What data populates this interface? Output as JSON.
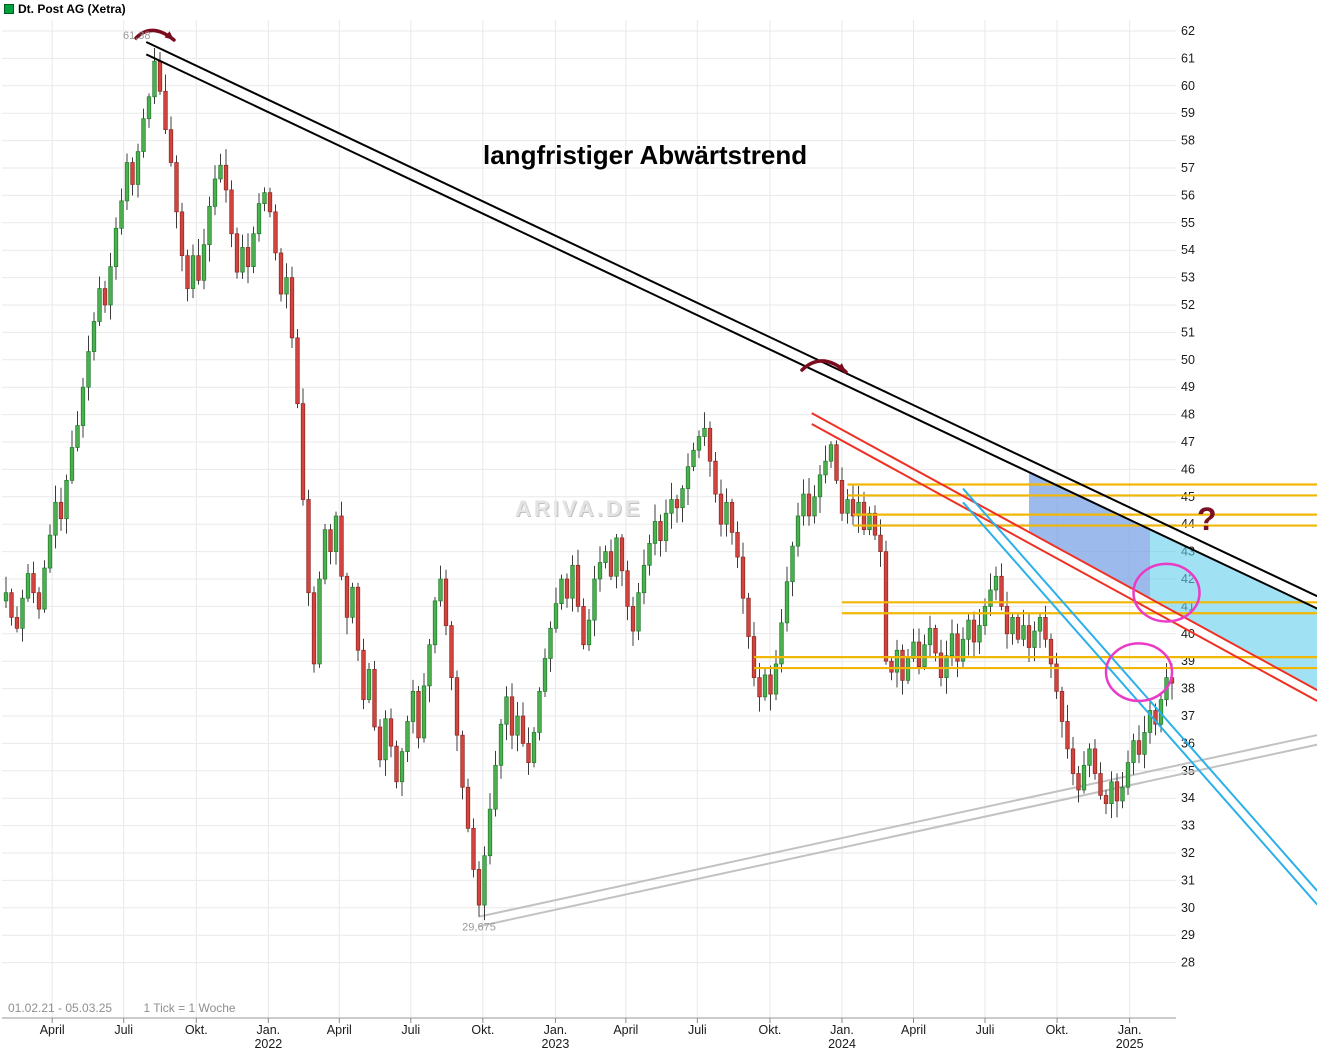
{
  "legend": {
    "title": "Dt. Post AG (Xetra)",
    "marker_color": "#00a33e"
  },
  "footer": {
    "range": "01.02.21 - 05.03.25",
    "tick": "1 Tick = 1 Woche"
  },
  "watermark": "ARIVA.DE",
  "colors": {
    "up": "#4caf50",
    "up_border": "#1e7a28",
    "down": "#d2453f",
    "down_border": "#8e241f",
    "wick": "#3c3c3c",
    "grid": "#e9e9e9",
    "axis_text": "#1a1a1a",
    "axis_line": "#999999",
    "trend_black": "#000000",
    "trend_red": "#ee3124",
    "trend_blue": "#2bb0e8",
    "trend_gray": "#c2c2c2",
    "band_yellow": "#f2b705",
    "ellipse_magenta": "#ea3bc7",
    "arrow_dark_red": "#7a0c1e",
    "label_gray": "#9a9a9a"
  },
  "chart_data": {
    "type": "candlestick",
    "title": "Dt. Post AG (Xetra)",
    "period": "01.02.21 - 05.03.25",
    "interval": "1 Tick = 1 Woche",
    "ylim": [
      27.0,
      62.4
    ],
    "grid": true,
    "y_axis": {
      "ticks": [
        62,
        61,
        60,
        59,
        58,
        57,
        56,
        55,
        54,
        53,
        52,
        51,
        50,
        49,
        48,
        47,
        46,
        45,
        44,
        43,
        42,
        41,
        40,
        39,
        38,
        37,
        36,
        35,
        34,
        33,
        32,
        31,
        30,
        29,
        28
      ]
    },
    "x_axis": {
      "labels": [
        {
          "text": "April",
          "week": 8.4
        },
        {
          "text": "Juli",
          "week": 21.4
        },
        {
          "text": "Okt.",
          "week": 34.6
        },
        {
          "text": "Jan.",
          "week": 47.7,
          "year": "2022"
        },
        {
          "text": "April",
          "week": 60.6
        },
        {
          "text": "Juli",
          "week": 73.6
        },
        {
          "text": "Okt.",
          "week": 86.7
        },
        {
          "text": "Jan.",
          "week": 99.9,
          "year": "2023"
        },
        {
          "text": "April",
          "week": 112.7
        },
        {
          "text": "Juli",
          "week": 125.7
        },
        {
          "text": "Okt.",
          "week": 138.9
        },
        {
          "text": "Jan.",
          "week": 152.0,
          "year": "2024"
        },
        {
          "text": "April",
          "week": 165.0
        },
        {
          "text": "Juli",
          "week": 178.0
        },
        {
          "text": "Okt.",
          "week": 191.1
        },
        {
          "text": "Jan.",
          "week": 204.3,
          "year": "2025"
        }
      ]
    },
    "open_first": 41.2,
    "closes": [
      41.5,
      40.6,
      40.2,
      41.3,
      42.2,
      41.5,
      40.9,
      42.4,
      43.6,
      44.8,
      44.2,
      45.6,
      46.8,
      47.6,
      49.0,
      50.3,
      51.4,
      52.6,
      52.0,
      53.4,
      54.8,
      55.8,
      57.2,
      56.4,
      57.6,
      58.8,
      59.6,
      60.9,
      59.8,
      58.4,
      57.2,
      55.4,
      53.8,
      52.6,
      53.8,
      52.9,
      54.2,
      55.6,
      56.6,
      57.1,
      56.2,
      54.6,
      53.2,
      54.1,
      53.4,
      54.6,
      55.7,
      56.1,
      55.4,
      53.9,
      52.4,
      53.0,
      50.8,
      48.4,
      44.9,
      41.5,
      38.9,
      42.0,
      43.8,
      43.0,
      44.3,
      42.1,
      40.6,
      41.7,
      39.4,
      37.6,
      38.7,
      36.6,
      35.4,
      36.9,
      35.9,
      34.6,
      35.7,
      36.8,
      37.9,
      36.2,
      38.1,
      39.6,
      41.2,
      42.0,
      40.3,
      38.4,
      36.3,
      34.4,
      32.9,
      31.4,
      30.1,
      31.9,
      33.6,
      35.2,
      36.7,
      37.7,
      36.3,
      37.0,
      36.0,
      35.3,
      36.4,
      37.9,
      39.1,
      40.2,
      41.1,
      42.0,
      41.3,
      42.5,
      41.0,
      39.6,
      40.5,
      42.0,
      42.6,
      43.0,
      42.1,
      43.5,
      42.3,
      41.0,
      40.1,
      41.5,
      42.5,
      43.3,
      44.1,
      43.4,
      44.4,
      44.9,
      44.6,
      45.3,
      46.1,
      46.7,
      47.2,
      47.5,
      46.3,
      45.1,
      44.0,
      44.8,
      43.7,
      42.8,
      41.3,
      39.9,
      38.4,
      37.7,
      38.5,
      37.8,
      38.9,
      40.4,
      41.9,
      43.2,
      44.3,
      45.1,
      44.3,
      45.0,
      45.8,
      46.3,
      46.9,
      45.6,
      44.4,
      44.9,
      44.3,
      44.8,
      43.8,
      44.4,
      43.6,
      43.0,
      39.0,
      38.6,
      39.4,
      38.3,
      39.1,
      39.7,
      38.8,
      39.6,
      40.2,
      39.3,
      38.4,
      39.2,
      40.0,
      39.0,
      39.8,
      40.5,
      39.7,
      40.3,
      41.0,
      41.6,
      42.1,
      41.0,
      40.0,
      40.6,
      39.8,
      40.3,
      39.5,
      40.1,
      40.6,
      39.8,
      38.9,
      37.9,
      36.8,
      35.8,
      34.9,
      34.3,
      35.2,
      35.8,
      34.9,
      34.1,
      33.8,
      34.6,
      33.9,
      34.4,
      35.3,
      36.1,
      35.6,
      36.4,
      37.2,
      36.7,
      37.6,
      38.4,
      38.2
    ],
    "annotations": {
      "trend_text": "langfristiger Abwärtstrend",
      "question_mark": "?",
      "high_label": {
        "week": 27,
        "price": 61.38,
        "text": "61,38"
      },
      "low_label": {
        "week": 86,
        "price": 29.675,
        "text": "29,675"
      }
    },
    "overlays": {
      "trendlines": [
        {
          "name": "trendline-black-longterm",
          "color_key": "trend_black",
          "anchor_week": 26,
          "anchor_price": 61.55,
          "slope_per_week": -0.095,
          "from_week": 25.5,
          "to_week": 238.4,
          "gap": 0.45,
          "width": 2
        },
        {
          "name": "trendline-red-medium",
          "color_key": "trend_red",
          "anchor_week": 147,
          "anchor_price": 48.0,
          "slope_per_week": -0.11,
          "from_week": 146.5,
          "to_week": 238.4,
          "gap": 0.4,
          "width": 2
        },
        {
          "name": "trendline-blue-steep",
          "color_key": "trend_blue",
          "anchor_week": 174,
          "anchor_price": 45.3,
          "slope_per_week": -0.228,
          "from_week": 174,
          "to_week": 238.4,
          "gap": 0.5,
          "width": 2
        },
        {
          "name": "trendline-gray-support",
          "color_key": "trend_gray",
          "anchor_week": 86,
          "anchor_price": 29.675,
          "slope_per_week": 0.0435,
          "from_week": 86,
          "to_week": 238.4,
          "gap": 0.35,
          "width": 2
        }
      ],
      "bands": [
        {
          "name": "resistance-band-45",
          "upper": 45.45,
          "lower": 45.05,
          "from_week": 153
        },
        {
          "name": "resistance-band-44",
          "upper": 44.35,
          "lower": 43.95,
          "from_week": 154
        },
        {
          "name": "resistance-band-41",
          "upper": 41.15,
          "lower": 40.75,
          "from_week": 152
        },
        {
          "name": "support-band-39",
          "upper": 39.15,
          "lower": 38.75,
          "from_week": 136
        }
      ],
      "wedges": [
        {
          "name": "wedge-cyan",
          "top_line": 0,
          "top_offset": -0.45,
          "bottom_line": 1,
          "bottom_offset": 0,
          "from_week": 186,
          "to_week": 238.4,
          "fill": "rgba(96,205,235,0.6)"
        },
        {
          "name": "wedge-violet",
          "top_line": 0,
          "top_offset": -0.45,
          "bottom_line": 1,
          "bottom_offset": 0,
          "from_week": 186,
          "to_week": 208,
          "fill": "rgba(150,115,220,0.35)"
        }
      ],
      "ellipses": [
        {
          "cx_week": 211,
          "cy_price": 41.5,
          "rx_weeks": 6,
          "ry_price": 1.05
        },
        {
          "cx_week": 206,
          "cy_price": 38.6,
          "rx_weeks": 6,
          "ry_price": 1.05
        }
      ],
      "arrows": [
        {
          "from": [
            136,
            38
          ],
          "ctrl": [
            152,
            22
          ],
          "to": [
            174,
            40
          ]
        },
        {
          "from": [
            802,
            370
          ],
          "ctrl": [
            822,
            351
          ],
          "to": [
            846,
            372
          ]
        }
      ]
    }
  }
}
